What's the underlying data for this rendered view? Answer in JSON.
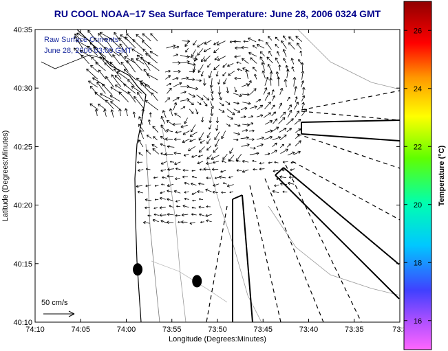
{
  "chart_data": {
    "type": "vector_field",
    "title": "RU COOL  NOAA−17  Sea Surface Temperature:  June 28, 2006 0324 GMT",
    "overlay_line1": "Raw Surface Currents",
    "overlay_line2": "June 28, 2006 03:00 GMT",
    "xlabel": "Longitude (Degrees:Minutes)",
    "ylabel": "Latitude (Degrees:Minutes)",
    "x_ticks": [
      "74:10",
      "74:05",
      "74:00",
      "73:55",
      "73:50",
      "73:45",
      "73:40",
      "73:35",
      "73:3"
    ],
    "y_ticks": [
      "40:35",
      "40:30",
      "40:25",
      "40:20",
      "40:15",
      "40:10"
    ],
    "xlim": [
      -74.1667,
      -73.5
    ],
    "ylim": [
      40.1667,
      40.5833
    ],
    "scale_label": "50 cm/s",
    "colorbar": {
      "label": "Temperature (°C)",
      "ticks": [
        "26",
        "24",
        "22",
        "20",
        "18",
        "16"
      ],
      "range": [
        15,
        27
      ]
    },
    "buoys": [
      {
        "lon": -73.9792,
        "lat": 40.2417
      },
      {
        "lon": -73.8708,
        "lat": 40.225
      }
    ],
    "colors": {
      "title": "#00008b",
      "overlay": "#1f2fa0",
      "background": "#ffffff"
    }
  }
}
